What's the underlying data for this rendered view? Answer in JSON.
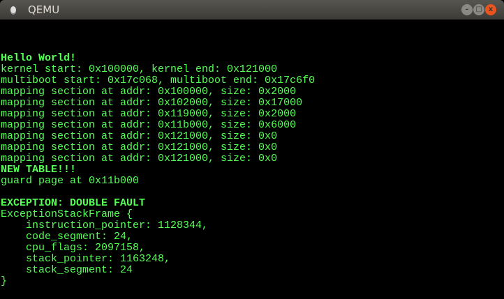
{
  "window": {
    "title": "QEMU",
    "minimize": "–",
    "maximize": "□",
    "close": "x"
  },
  "colors": {
    "text": "#55ff55",
    "background": "#000000"
  },
  "console": {
    "lines": [
      {
        "text": "Hello World!",
        "bold": true
      },
      {
        "text": "kernel start: 0x100000, kernel end: 0x121000"
      },
      {
        "text": "multiboot start: 0x17c068, multiboot end: 0x17c6f0"
      },
      {
        "text": "mapping section at addr: 0x100000, size: 0x2000"
      },
      {
        "text": "mapping section at addr: 0x102000, size: 0x17000"
      },
      {
        "text": "mapping section at addr: 0x119000, size: 0x2000"
      },
      {
        "text": "mapping section at addr: 0x11b000, size: 0x6000"
      },
      {
        "text": "mapping section at addr: 0x121000, size: 0x0"
      },
      {
        "text": "mapping section at addr: 0x121000, size: 0x0"
      },
      {
        "text": "mapping section at addr: 0x121000, size: 0x0"
      },
      {
        "text": "NEW TABLE!!!",
        "bold": true
      },
      {
        "text": "guard page at 0x11b000"
      },
      {
        "text": ""
      },
      {
        "text": "EXCEPTION: DOUBLE FAULT",
        "bold": true
      },
      {
        "text": "ExceptionStackFrame {"
      },
      {
        "text": "    instruction_pointer: 1128344,"
      },
      {
        "text": "    code_segment: 24,"
      },
      {
        "text": "    cpu_flags: 2097158,"
      },
      {
        "text": "    stack_pointer: 1163248,"
      },
      {
        "text": "    stack_segment: 24"
      },
      {
        "text": "}"
      }
    ]
  }
}
